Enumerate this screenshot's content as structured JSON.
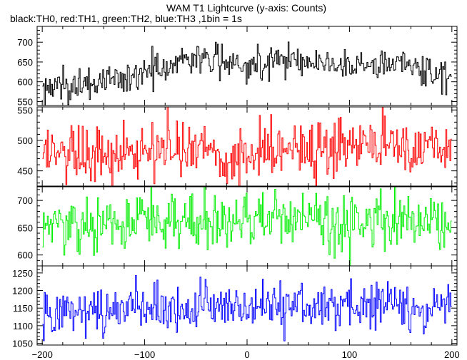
{
  "header": {
    "title": "WAM T1 Lightcurve (y-axis: Counts)",
    "subtitle": "black:TH0, red:TH1, green:TH2, blue:TH3 ,1bin = 1s"
  },
  "chart_data": {
    "type": "line",
    "title": "WAM T1 Lightcurve (y-axis: Counts)",
    "subtitle": "black:TH0, red:TH1, green:TH2, blue:TH3 ,1bin = 1s",
    "xlabel": "",
    "xlim": [
      -205,
      205
    ],
    "x_ticks": [
      -200,
      -100,
      0,
      100,
      200
    ],
    "x_tick_labels": [
      "−200",
      "−100",
      "0",
      "100",
      "200"
    ],
    "bin_seconds": 1,
    "grid": false,
    "panels": [
      {
        "name": "TH0",
        "color": "#000000",
        "ylim": [
          540,
          740
        ],
        "y_ticks": [
          550,
          600,
          650,
          700
        ],
        "y_tick_labels": [
          "550",
          "600",
          "650",
          "700"
        ],
        "baseline": [
          [
            -200,
            582
          ],
          [
            -160,
            592
          ],
          [
            -120,
            608
          ],
          [
            -90,
            628
          ],
          [
            -60,
            662
          ],
          [
            -30,
            652
          ],
          [
            0,
            642
          ],
          [
            30,
            660
          ],
          [
            60,
            652
          ],
          [
            90,
            640
          ],
          [
            120,
            646
          ],
          [
            150,
            646
          ],
          [
            180,
            626
          ],
          [
            200,
            612
          ]
        ],
        "noise_sd": 21
      },
      {
        "name": "TH1",
        "color": "#ff0000",
        "ylim": [
          425,
          555
        ],
        "y_ticks": [
          450,
          500,
          550
        ],
        "y_tick_labels": [
          "450",
          "500",
          "550"
        ],
        "baseline": [
          [
            -200,
            478
          ],
          [
            -100,
            484
          ],
          [
            0,
            486
          ],
          [
            100,
            488
          ],
          [
            200,
            490
          ]
        ],
        "noise_sd": 24
      },
      {
        "name": "TH2",
        "color": "#00ee00",
        "ylim": [
          580,
          725
        ],
        "y_ticks": [
          600,
          650,
          700
        ],
        "y_tick_labels": [
          "600",
          "650",
          "700"
        ],
        "baseline": [
          [
            -200,
            652
          ],
          [
            -100,
            658
          ],
          [
            0,
            662
          ],
          [
            100,
            664
          ],
          [
            200,
            660
          ]
        ],
        "noise_sd": 25
      },
      {
        "name": "TH3",
        "color": "#0000ff",
        "ylim": [
          1045,
          1270
        ],
        "y_ticks": [
          1050,
          1100,
          1150,
          1200,
          1250
        ],
        "y_tick_labels": [
          "1050",
          "1100",
          "1150",
          "1200",
          "1250"
        ],
        "baseline": [
          [
            -200,
            1148
          ],
          [
            -100,
            1152
          ],
          [
            0,
            1155
          ],
          [
            100,
            1158
          ],
          [
            200,
            1156
          ]
        ],
        "noise_sd": 34
      }
    ]
  }
}
